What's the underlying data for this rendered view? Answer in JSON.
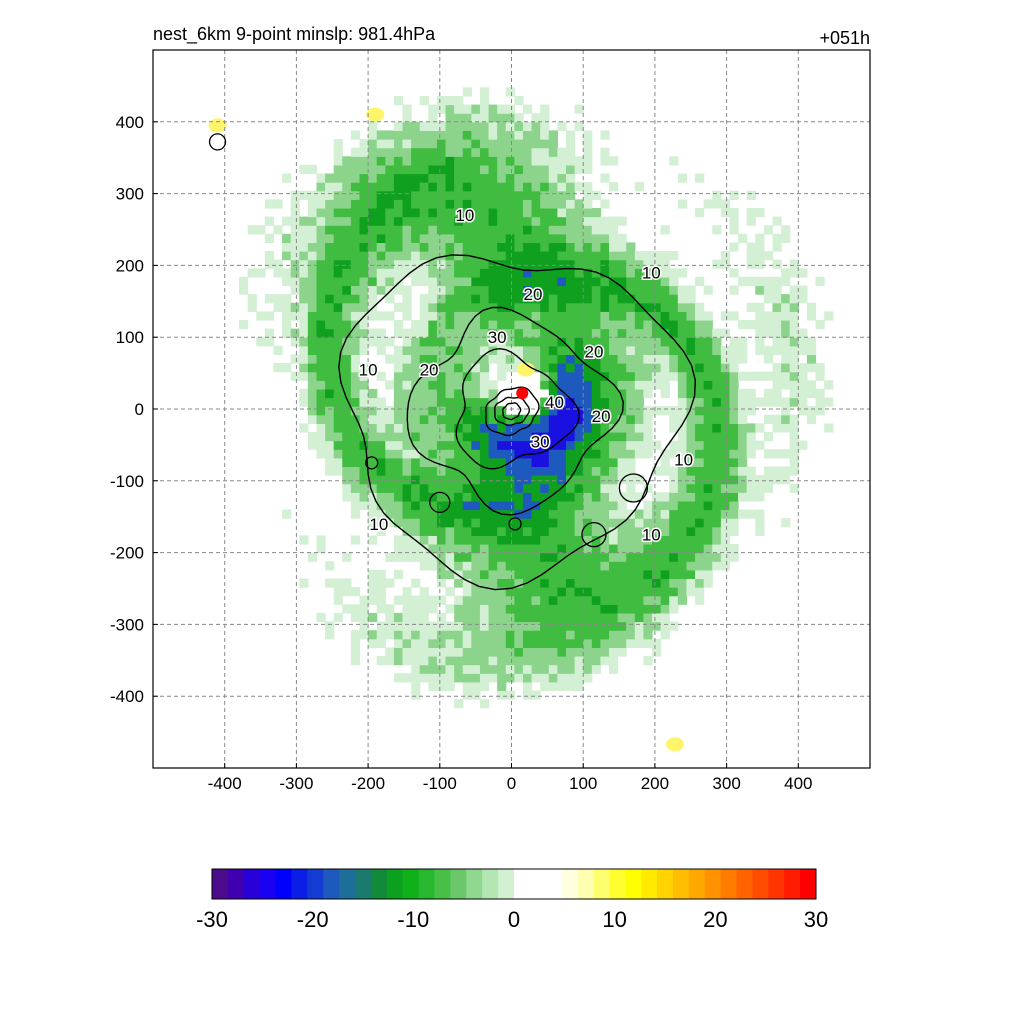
{
  "title_left": "nest_6km  9-point minslp: 981.4hPa",
  "title_right": "+051h",
  "chart_data": {
    "type": "heatmap",
    "xlim": [
      -500,
      500
    ],
    "ylim": [
      -500,
      500
    ],
    "x_ticks": [
      "-400",
      "-300",
      "-200",
      "-100",
      "0",
      "100",
      "200",
      "300",
      "400"
    ],
    "y_ticks": [
      "400",
      "300",
      "200",
      "100",
      "0",
      "-100",
      "-200",
      "-300",
      "-400"
    ],
    "x_tick_values": [
      -400,
      -300,
      -200,
      -100,
      0,
      100,
      200,
      300,
      400
    ],
    "y_tick_values": [
      400,
      300,
      200,
      100,
      0,
      -100,
      -200,
      -300,
      -400
    ],
    "grid": true,
    "colorbar": {
      "range": [
        -30,
        30
      ],
      "ticks": [
        "-30",
        "-20",
        "-10",
        "0",
        "10",
        "20",
        "30"
      ],
      "tick_values": [
        -30,
        -20,
        -10,
        0,
        10,
        20,
        30
      ],
      "colors": [
        "#4b0c8c",
        "#3f00b0",
        "#2800d8",
        "#1a00f0",
        "#0000ff",
        "#0a1ee6",
        "#143cd2",
        "#1e5abe",
        "#1e6e9a",
        "#1a7a6e",
        "#128a3a",
        "#0ca021",
        "#10b01a",
        "#28b830",
        "#48c048",
        "#6ac86a",
        "#90d890",
        "#b4e6b4",
        "#d2f0d2",
        "#ffffff",
        "#ffffff",
        "#ffffff",
        "#ffffe0",
        "#ffffb0",
        "#ffff70",
        "#ffff30",
        "#ffff00",
        "#ffea00",
        "#ffd400",
        "#ffbe00",
        "#ffa800",
        "#ff9200",
        "#ff7c00",
        "#ff6400",
        "#ff4c00",
        "#ff3400",
        "#ff1c00",
        "#ff0000"
      ]
    },
    "contour_levels": [
      10,
      20,
      30,
      40
    ],
    "contour_labels": [
      "10",
      "10",
      "10",
      "10",
      "10",
      "10",
      "20",
      "20",
      "20",
      "20",
      "30",
      "30",
      "40"
    ],
    "center_marker": {
      "x": 15,
      "y": 22,
      "color": "#ff0000"
    }
  }
}
